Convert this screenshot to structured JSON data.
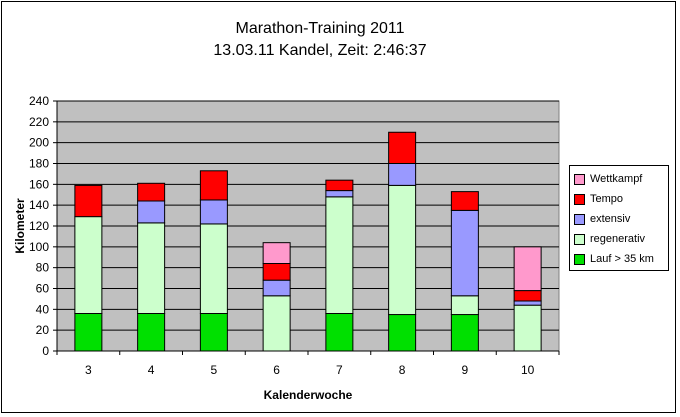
{
  "chart_data": {
    "type": "bar",
    "stacked": true,
    "title": "Marathon-Training 2011",
    "subtitle": "13.03.11 Kandel, Zeit: 2:46:37",
    "xlabel": "Kalenderwoche",
    "ylabel": "Kilometer",
    "ylim": [
      0,
      240
    ],
    "yticks": [
      0,
      20,
      40,
      60,
      80,
      100,
      120,
      140,
      160,
      180,
      200,
      220,
      240
    ],
    "grid": true,
    "legend_position": "right",
    "categories": [
      "3",
      "4",
      "5",
      "6",
      "7",
      "8",
      "9",
      "10"
    ],
    "series": [
      {
        "name": "Lauf > 35 km",
        "color": "#00e000",
        "values": [
          36,
          36,
          36,
          0,
          36,
          35,
          35,
          0
        ]
      },
      {
        "name": "regenerativ",
        "color": "#ccffcc",
        "values": [
          93,
          87,
          86,
          53,
          112,
          124,
          18,
          44
        ]
      },
      {
        "name": "extensiv",
        "color": "#9999ff",
        "values": [
          0,
          21,
          23,
          15,
          6,
          21,
          82,
          4
        ]
      },
      {
        "name": "Tempo",
        "color": "#ff0000",
        "values": [
          30,
          17,
          28,
          16,
          10,
          30,
          18,
          10
        ]
      },
      {
        "name": "Wettkampf",
        "color": "#ff99cc",
        "values": [
          0,
          0,
          0,
          20,
          0,
          0,
          0,
          42
        ]
      }
    ]
  }
}
